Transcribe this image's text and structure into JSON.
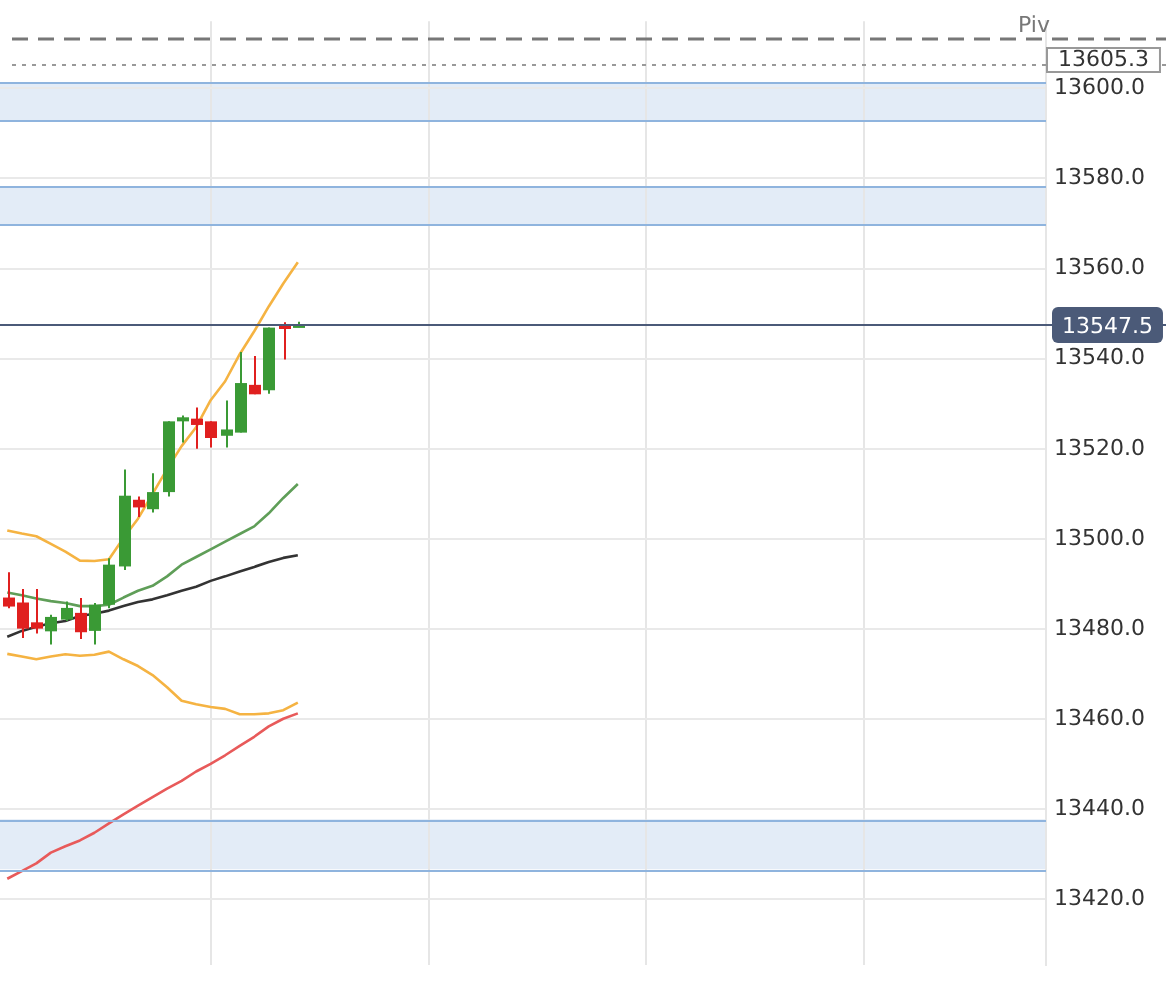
{
  "chart_data": {
    "type": "candlestick",
    "categories": [
      null,
      null,
      null,
      null,
      null,
      null,
      null,
      null,
      null,
      null,
      null,
      null,
      null,
      null,
      null,
      null,
      null,
      null,
      null,
      null,
      null,
      null,
      null,
      null,
      null,
      null,
      null,
      null,
      null,
      null,
      null,
      null,
      null,
      null,
      null,
      null,
      null,
      null,
      null,
      null,
      null,
      null,
      null,
      null,
      null,
      null,
      null,
      null,
      null,
      null,
      null,
      null,
      null,
      null,
      null,
      null,
      null,
      null,
      null,
      null,
      null,
      null,
      null,
      null,
      null,
      null,
      null,
      null,
      null,
      null,
      null,
      null
    ],
    "ohlc": [
      [
        13487.0,
        13492.6,
        13484.6,
        13485.0
      ],
      [
        13485.9,
        13488.9,
        13478.0,
        13480.1
      ],
      [
        13481.5,
        13488.9,
        13479.0,
        13480.1
      ],
      [
        13479.5,
        13483.2,
        13476.6,
        13482.7
      ],
      [
        13482.1,
        13486.1,
        13481.8,
        13484.7
      ],
      [
        13483.6,
        13486.9,
        13477.8,
        13479.3
      ],
      [
        13479.6,
        13485.8,
        13476.6,
        13485.4
      ],
      [
        13485.4,
        13495.7,
        13484.6,
        13494.3
      ],
      [
        13493.9,
        13515.4,
        13493.1,
        13509.6
      ],
      [
        13508.7,
        13509.4,
        13504.9,
        13507.0
      ],
      [
        13506.6,
        13514.6,
        13505.9,
        13510.4
      ],
      [
        13510.4,
        13526.1,
        13509.4,
        13526.1
      ],
      [
        13526.1,
        13527.4,
        13521.4,
        13527.0
      ],
      [
        13526.7,
        13529.2,
        13520.0,
        13525.3
      ],
      [
        13526.1,
        13526.1,
        13520.3,
        13522.4
      ],
      [
        13522.9,
        13530.7,
        13520.3,
        13524.3
      ],
      [
        13523.6,
        13541.5,
        13523.6,
        13534.6
      ],
      [
        13534.2,
        13540.6,
        13532.1,
        13532.1
      ],
      [
        13533.0,
        13546.9,
        13532.2,
        13546.9
      ],
      [
        13547.3,
        13548.1,
        13539.8,
        13546.6
      ],
      [
        13547.0,
        13548.2,
        13547.0,
        13547.5
      ],
      null,
      null,
      null,
      null,
      null,
      null,
      null,
      null,
      null,
      null,
      null,
      null,
      null,
      null,
      null,
      null,
      null,
      null,
      null,
      null,
      null,
      null,
      null,
      null,
      null,
      null,
      null,
      null,
      null,
      null,
      null,
      null,
      null,
      null,
      null,
      null,
      null,
      null,
      null,
      null,
      null,
      null,
      null,
      null,
      null,
      null,
      null,
      null,
      null,
      null,
      null
    ],
    "colors": [
      "#e0201f",
      "#e0201f",
      "#e0201f",
      "#3a9a35",
      "#3a9a35",
      "#e0201f",
      "#3a9a35",
      "#3a9a35",
      "#3a9a35",
      "#e0201f",
      "#3a9a35",
      "#3a9a35",
      "#3a9a35",
      "#e0201f",
      "#e0201f",
      "#3a9a35",
      "#3a9a35",
      "#e0201f",
      "#3a9a35",
      "#e0201f",
      "#3a9a35",
      null,
      null,
      null,
      null,
      null,
      null,
      null,
      null,
      null,
      null,
      null,
      null,
      null,
      null,
      null,
      null,
      null,
      null,
      null,
      null,
      null,
      null,
      null,
      null,
      null,
      null,
      null,
      null,
      null,
      null,
      null,
      null,
      null,
      null,
      null,
      null,
      null,
      null,
      null,
      null,
      null,
      null,
      null,
      null,
      null,
      null,
      null,
      null,
      null,
      null,
      null
    ],
    "series": [
      {
        "type": "line",
        "color": "#f5b342",
        "values": [
          13501.9,
          13501.2,
          13500.6,
          13498.9,
          13497.2,
          13495.2,
          13495.1,
          13495.5,
          13500.2,
          13504.5,
          13510.0,
          13515.5,
          13520.6,
          13524.8,
          13530.8,
          13535.0,
          13541.0,
          13546.1,
          13551.6,
          13556.7,
          13561.4,
          null,
          null,
          null,
          null,
          null,
          null,
          null,
          null,
          null,
          null,
          null,
          null,
          null,
          null,
          null,
          null,
          null,
          null,
          null,
          null,
          null,
          null,
          null,
          null,
          null,
          null,
          null,
          null,
          null,
          null,
          null,
          null,
          null,
          null,
          null,
          null,
          null,
          null,
          null,
          null,
          null,
          null,
          null,
          null,
          null,
          null,
          null,
          null,
          null,
          null,
          null
        ]
      },
      {
        "type": "line",
        "color": "#f5b342",
        "values": [
          13474.5,
          13473.9,
          13473.3,
          13473.9,
          13474.4,
          13474.1,
          13474.3,
          13475.0,
          13473.3,
          13471.8,
          13469.8,
          13467.1,
          13464.1,
          13463.3,
          13462.7,
          13462.3,
          13461.1,
          13461.1,
          13461.3,
          13462.0,
          13463.7,
          null,
          null,
          null,
          null,
          null,
          null,
          null,
          null,
          null,
          null,
          null,
          null,
          null,
          null,
          null,
          null,
          null,
          null,
          null,
          null,
          null,
          null,
          null,
          null,
          null,
          null,
          null,
          null,
          null,
          null,
          null,
          null,
          null,
          null,
          null,
          null,
          null,
          null,
          null,
          null,
          null,
          null,
          null,
          null,
          null,
          null,
          null,
          null,
          null,
          null,
          null
        ]
      },
      {
        "type": "line",
        "color": "#5f9e58",
        "values": [
          13488.1,
          13487.5,
          13486.8,
          13486.2,
          13485.8,
          13485.1,
          13485.1,
          13485.4,
          13487.0,
          13488.5,
          13489.6,
          13491.7,
          13494.3,
          13496.0,
          13497.7,
          13499.4,
          13501.1,
          13502.8,
          13505.7,
          13509.1,
          13512.2,
          null,
          null,
          null,
          null,
          null,
          null,
          null,
          null,
          null,
          null,
          null,
          null,
          null,
          null,
          null,
          null,
          null,
          null,
          null,
          null,
          null,
          null,
          null,
          null,
          null,
          null,
          null,
          null,
          null,
          null,
          null,
          null,
          null,
          null,
          null,
          null,
          null,
          null,
          null,
          null,
          null,
          null,
          null,
          null,
          null,
          null,
          null,
          null,
          null,
          null,
          null
        ]
      },
      {
        "type": "line",
        "color": "#333333",
        "values": [
          13478.3,
          13479.6,
          13480.5,
          13481.3,
          13481.8,
          13482.9,
          13483.4,
          13484.1,
          13485.1,
          13486.0,
          13486.6,
          13487.5,
          13488.5,
          13489.4,
          13490.7,
          13491.7,
          13492.8,
          13493.8,
          13494.9,
          13495.8,
          13496.4,
          null,
          null,
          null,
          null,
          null,
          null,
          null,
          null,
          null,
          null,
          null,
          null,
          null,
          null,
          null,
          null,
          null,
          null,
          null,
          null,
          null,
          null,
          null,
          null,
          null,
          null,
          null,
          null,
          null,
          null,
          null,
          null,
          null,
          null,
          null,
          null,
          null,
          null,
          null,
          null,
          null,
          null,
          null,
          null,
          null,
          null,
          null,
          null,
          null,
          null,
          null
        ]
      },
      {
        "type": "line",
        "color": "#e85a5a",
        "values": [
          13424.6,
          13426.3,
          13428.0,
          13430.4,
          13431.8,
          13433.1,
          13434.8,
          13436.9,
          13438.9,
          13440.8,
          13442.7,
          13444.6,
          13446.3,
          13448.4,
          13450.1,
          13452.0,
          13454.1,
          13456.1,
          13458.4,
          13460.1,
          13461.3,
          null,
          null,
          null,
          null,
          null,
          null,
          null,
          null,
          null,
          null,
          null,
          null,
          null,
          null,
          null,
          null,
          null,
          null,
          null,
          null,
          null,
          null,
          null,
          null,
          null,
          null,
          null,
          null,
          null,
          null,
          null,
          null,
          null,
          null,
          null,
          null,
          null,
          null,
          null,
          null,
          null,
          null,
          null,
          null,
          null,
          null,
          null,
          null,
          null,
          null,
          null
        ]
      }
    ],
    "ylim": [
      13405.5,
      13614.9
    ],
    "yticks": [
      {
        "value": 13420,
        "label": "13420.0"
      },
      {
        "value": 13440,
        "label": "13440.0"
      },
      {
        "value": 13460,
        "label": "13460.0"
      },
      {
        "value": 13480,
        "label": "13480.0"
      },
      {
        "value": 13500,
        "label": "13500.0"
      },
      {
        "value": 13520,
        "label": "13520.0"
      },
      {
        "value": 13540,
        "label": "13540.0"
      },
      {
        "value": 13560,
        "label": "13560.0"
      },
      {
        "value": 13580,
        "label": "13580.0"
      },
      {
        "value": 13600,
        "label": "13600.0"
      }
    ],
    "bands": [
      {
        "axis": "y",
        "from": 13592.8,
        "to": 13601.3,
        "color": "#e3ecf7"
      },
      {
        "axis": "y",
        "from": 13569.9,
        "to": 13578.3,
        "color": "#e3ecf7"
      },
      {
        "axis": "y",
        "from": 13426.7,
        "to": 13437.8,
        "color": "#e3ecf7"
      }
    ],
    "ref_lines": [
      {
        "axis": "y",
        "value": 13611.0,
        "label": "Piv",
        "color": "#777777",
        "line_style": "dashed"
      },
      {
        "axis": "y",
        "value": 13605.3,
        "label": "13605.3",
        "color": "#999999",
        "line_style": "dotted"
      },
      {
        "axis": "y",
        "value": 13547.5,
        "label": "13547.5",
        "color": "#4b5a78",
        "line_style": "solid"
      },
      {
        "axis": "y",
        "value": 13601.3,
        "color": "#8fb4de"
      },
      {
        "axis": "y",
        "value": 13592.8,
        "color": "#8fb4de"
      },
      {
        "axis": "y",
        "value": 13578.3,
        "color": "#8fb4de"
      },
      {
        "axis": "y",
        "value": 13569.9,
        "color": "#8fb4de"
      },
      {
        "axis": "y",
        "value": 13437.8,
        "color": "#8fb4de"
      },
      {
        "axis": "y",
        "value": 13426.7,
        "color": "#8fb4de"
      }
    ],
    "grid": true,
    "legend": false,
    "marker": "none",
    "tick_labels": "y"
  }
}
